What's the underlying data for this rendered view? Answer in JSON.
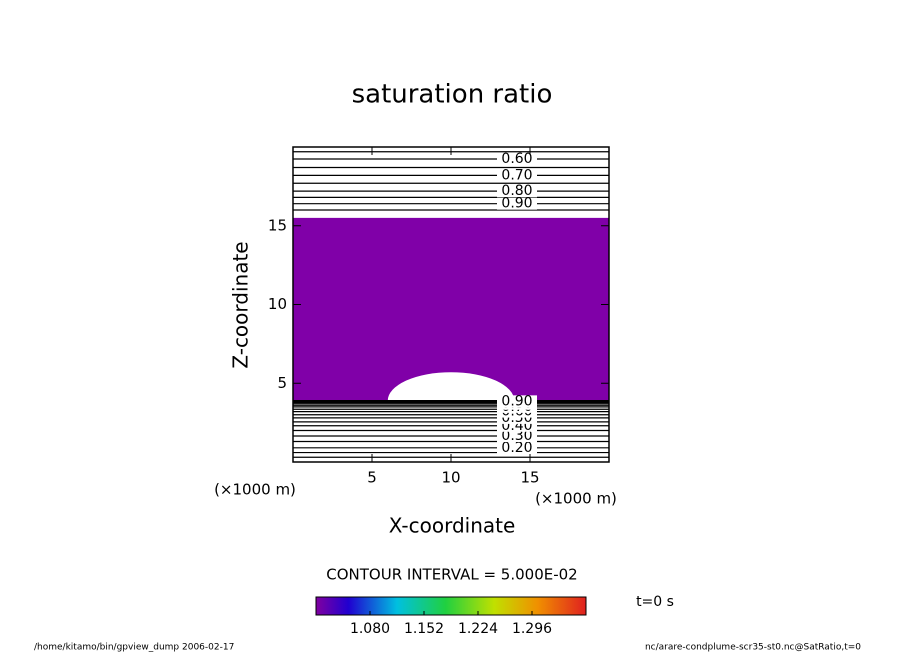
{
  "chart_data": {
    "type": "contour",
    "title": "saturation ratio",
    "x_label": "X-coordinate",
    "y_label": "Z-coordinate",
    "x_unit": "(×1000 m)",
    "y_unit": "(×1000 m)",
    "xlim": [
      0,
      20
    ],
    "ylim": [
      0,
      20
    ],
    "xticks": [
      5,
      10,
      15
    ],
    "yticks": [
      5,
      10,
      15
    ],
    "fill_region": {
      "zlim": [
        3.9,
        15.5
      ],
      "color": "#8000a8"
    },
    "clear_region": {
      "x_center": 10,
      "x_halfwidth": 4,
      "z_top": 5.7
    },
    "contours": [
      {
        "value": 0.55,
        "z": 19.7
      },
      {
        "value": 0.6,
        "z": 19.24,
        "label": "0.60"
      },
      {
        "value": 0.65,
        "z": 18.7
      },
      {
        "value": 0.7,
        "z": 18.2,
        "label": "0.70"
      },
      {
        "value": 0.75,
        "z": 17.7
      },
      {
        "value": 0.8,
        "z": 17.2,
        "label": "0.80"
      },
      {
        "value": 0.85,
        "z": 16.8
      },
      {
        "value": 0.9,
        "z": 16.4,
        "label": "0.90"
      },
      {
        "value": 0.95,
        "z": 16.0
      },
      {
        "value": 0.1,
        "z": 0.3
      },
      {
        "value": 0.15,
        "z": 0.6
      },
      {
        "value": 0.2,
        "z": 0.9,
        "label": "0.20"
      },
      {
        "value": 0.25,
        "z": 1.3
      },
      {
        "value": 0.3,
        "z": 1.65,
        "label": "0.30"
      },
      {
        "value": 0.35,
        "z": 2.0
      },
      {
        "value": 0.4,
        "z": 2.3,
        "label": "0.40"
      },
      {
        "value": 0.45,
        "z": 2.55
      },
      {
        "value": 0.5,
        "z": 2.8,
        "label": "0.50"
      },
      {
        "value": 0.55,
        "z": 3.0
      },
      {
        "value": 0.6,
        "z": 3.2,
        "label": "0.60"
      },
      {
        "value": 0.65,
        "z": 3.35
      },
      {
        "value": 0.7,
        "z": 3.5,
        "label": "0.70"
      },
      {
        "value": 0.75,
        "z": 3.6
      },
      {
        "value": 0.8,
        "z": 3.7,
        "label": "0.80"
      },
      {
        "value": 0.85,
        "z": 3.78
      },
      {
        "value": 0.9,
        "z": 3.85,
        "label": "0.90"
      },
      {
        "value": 0.95,
        "z": 3.9
      }
    ],
    "contour_interval_text": "CONTOUR INTERVAL = 5.000E-02",
    "colorbar": {
      "clim": [
        1.008,
        1.368
      ],
      "ticks": [
        {
          "value": 1.08,
          "label": "1.080"
        },
        {
          "value": 1.152,
          "label": "1.152"
        },
        {
          "value": 1.224,
          "label": "1.224"
        },
        {
          "value": 1.296,
          "label": "1.296"
        }
      ]
    },
    "time_text": "t=0 s",
    "footer_left": "/home/kitamo/bin/gpview_dump  2006-02-17",
    "footer_right": "nc/arare-condplume-scr35-st0.nc@SatRatio,t=0"
  }
}
